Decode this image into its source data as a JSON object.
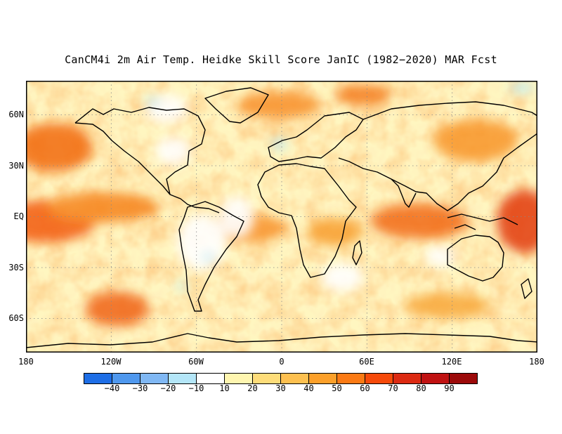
{
  "title": "CanCM4i 2m Air Temp. Heidke Skill Score JanIC (1982−2020) MAR Fcst",
  "y_axis_labels": [
    "60N",
    "30N",
    "EQ",
    "30S",
    "60S"
  ],
  "x_axis_labels": [
    "180",
    "120W",
    "60W",
    "0",
    "60E",
    "120E",
    "180"
  ],
  "colorbar": {
    "colors": [
      "#1e6ee6",
      "#4f98ee",
      "#80b8f4",
      "#b4e6f8",
      "#ffffff",
      "#fff6b0",
      "#fedd7a",
      "#fdc050",
      "#fca02a",
      "#fb7a14",
      "#f64a0a",
      "#dc2a12",
      "#c01212",
      "#9c0a0a"
    ],
    "labels": [
      "−40",
      "−30",
      "−20",
      "−10",
      "10",
      "20",
      "30",
      "40",
      "50",
      "60",
      "70",
      "80",
      "90"
    ]
  },
  "map": {
    "projection": "equirectangular",
    "lon_range": [
      -180,
      180
    ],
    "lat_range": [
      -80,
      80
    ],
    "grid_lines": "dotted",
    "coastlines": true
  }
}
